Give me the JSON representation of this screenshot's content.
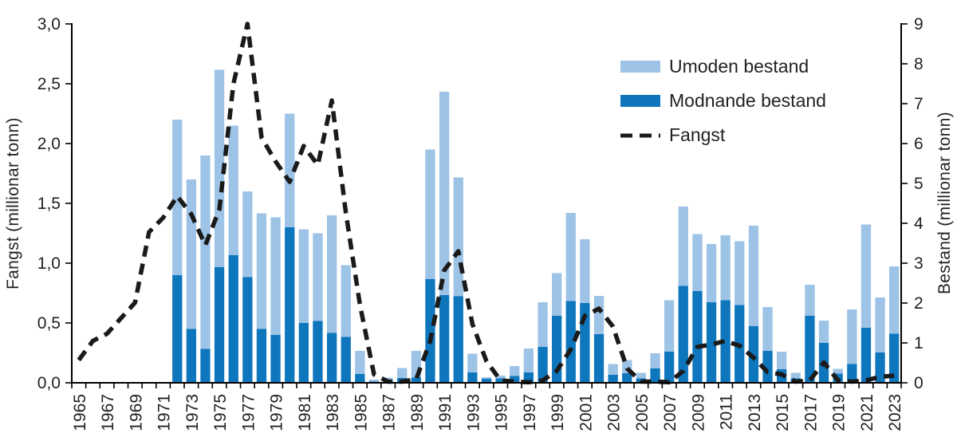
{
  "chart": {
    "left_axis": {
      "title": "Fangst  (millionar tonn)",
      "tick_labels": [
        "0,0",
        "0,5",
        "1,0",
        "1,5",
        "2,0",
        "2,5",
        "3,0"
      ],
      "min": 0,
      "max": 3
    },
    "right_axis": {
      "title": "Bestand (millionar tonn)",
      "tick_labels": [
        "0",
        "1",
        "2",
        "3",
        "4",
        "5",
        "6",
        "7",
        "8",
        "9"
      ],
      "min": 0,
      "max": 9
    },
    "legend": [
      {
        "label": "Umoden bestand",
        "color": "#9dc3e6",
        "kind": "bar"
      },
      {
        "label": "Modnande bestand",
        "color": "#0e76bc",
        "kind": "bar"
      },
      {
        "label": "Fangst",
        "color": "#1a1a1a",
        "kind": "dashed-line"
      }
    ]
  },
  "chart_data": {
    "type": "bar",
    "subtype": "stacked-bars-with-dashed-line",
    "categories": [
      1965,
      1966,
      1967,
      1968,
      1969,
      1970,
      1971,
      1972,
      1973,
      1974,
      1975,
      1976,
      1977,
      1978,
      1979,
      1980,
      1981,
      1982,
      1983,
      1984,
      1985,
      1986,
      1987,
      1988,
      1989,
      1990,
      1991,
      1992,
      1993,
      1994,
      1995,
      1996,
      1997,
      1998,
      1999,
      2000,
      2001,
      2002,
      2003,
      2004,
      2005,
      2006,
      2007,
      2008,
      2009,
      2010,
      2011,
      2012,
      2013,
      2014,
      2015,
      2016,
      2017,
      2018,
      2019,
      2020,
      2021,
      2022,
      2023
    ],
    "x_tick_labels": [
      "1965",
      "1967",
      "1969",
      "1971",
      "1973",
      "1975",
      "1977",
      "1979",
      "1981",
      "1983",
      "1985",
      "1987",
      "1989",
      "1991",
      "1993",
      "1995",
      "1997",
      "1999",
      "2001",
      "2003",
      "2005",
      "2007",
      "2009",
      "2011",
      "2013",
      "2015",
      "2017",
      "2019",
      "2021",
      "2023"
    ],
    "left_ylabel": "Fangst  (millionar tonn)",
    "right_ylabel": "Bestand (millionar tonn)",
    "left_ylim": [
      0,
      3
    ],
    "right_ylim": [
      0,
      9
    ],
    "grid": false,
    "legend_position": "upper-right-inside",
    "series": [
      {
        "name": "Modnande bestand",
        "type": "bar",
        "stack": "bestand",
        "axis": "right",
        "color": "#0e76bc",
        "values": [
          null,
          null,
          null,
          null,
          null,
          null,
          null,
          2.7,
          1.35,
          0.85,
          2.9,
          3.2,
          2.65,
          1.35,
          1.2,
          3.9,
          1.5,
          1.55,
          1.25,
          1.15,
          0.22,
          0.03,
          0.05,
          0.12,
          0.13,
          2.6,
          2.2,
          2.17,
          0.26,
          0.1,
          0.11,
          0.17,
          0.26,
          0.9,
          1.68,
          2.05,
          2.0,
          1.22,
          0.2,
          0.24,
          0.11,
          0.36,
          0.78,
          2.43,
          2.3,
          2.02,
          2.07,
          1.95,
          1.42,
          0.8,
          0.34,
          0.11,
          1.68,
          1.0,
          0.23,
          0.47,
          1.38,
          0.76,
          1.23
        ]
      },
      {
        "name": "Umoden bestand",
        "type": "bar",
        "stack": "bestand",
        "axis": "right",
        "color": "#9dc3e6",
        "values": [
          null,
          null,
          null,
          null,
          null,
          null,
          null,
          3.9,
          3.75,
          4.85,
          4.95,
          3.25,
          2.15,
          2.9,
          2.95,
          2.85,
          2.35,
          2.2,
          2.95,
          1.8,
          0.58,
          0.05,
          0.08,
          0.25,
          0.67,
          3.25,
          5.1,
          2.98,
          0.47,
          0.04,
          0.07,
          0.25,
          0.6,
          1.12,
          1.07,
          2.21,
          1.6,
          0.96,
          0.27,
          0.33,
          0.14,
          0.38,
          1.29,
          1.99,
          1.43,
          1.46,
          1.63,
          1.6,
          2.52,
          1.1,
          0.44,
          0.14,
          0.78,
          0.56,
          0.12,
          1.37,
          2.59,
          1.38,
          1.69
        ]
      },
      {
        "name": "Fangst",
        "type": "line",
        "dashed": true,
        "axis": "left",
        "color": "#1a1a1a",
        "values": [
          0.19,
          0.35,
          0.41,
          0.54,
          0.67,
          1.26,
          1.38,
          1.56,
          1.41,
          1.15,
          1.45,
          2.5,
          3.0,
          2.05,
          1.85,
          1.68,
          1.98,
          1.82,
          2.36,
          1.42,
          0.65,
          0.07,
          0.01,
          0.01,
          0.03,
          0.35,
          0.94,
          1.1,
          0.49,
          0.18,
          0.02,
          0.01,
          0.005,
          0.02,
          0.1,
          0.28,
          0.56,
          0.62,
          0.47,
          0.12,
          0.01,
          0.01,
          0.005,
          0.1,
          0.3,
          0.32,
          0.35,
          0.31,
          0.21,
          0.09,
          0.07,
          0.01,
          0.02,
          0.17,
          0.02,
          0.01,
          0.02,
          0.05,
          0.06
        ]
      }
    ]
  }
}
